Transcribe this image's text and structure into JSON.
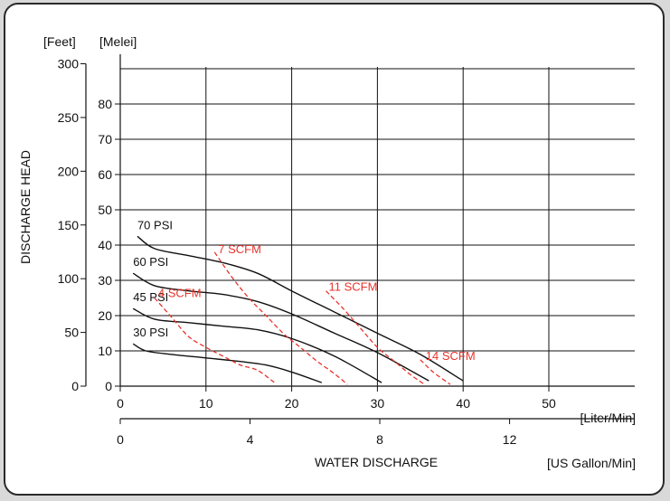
{
  "chart_data": {
    "type": "line",
    "units": {
      "feet_label": "[Feet]",
      "meter_label": "[Melei]",
      "liter_label": "[Liter/Min]",
      "gallon_label": "[US Gallon/Min]"
    },
    "ylabel": "DISCHARGE HEAD",
    "xlabel": "WATER DISCHARGE",
    "xlim": [
      0,
      60
    ],
    "ylim": [
      0,
      90
    ],
    "y_meter_ticks": [
      "0",
      "10",
      "20",
      "30",
      "40",
      "50",
      "60",
      "70",
      "80"
    ],
    "y_feet_ticks": [
      {
        "label": "0",
        "feet": 0
      },
      {
        "label": "50",
        "feet": 50
      },
      {
        "label": "100",
        "feet": 100
      },
      {
        "label": "150",
        "feet": 150
      },
      {
        "label": "200",
        "feet": 200
      },
      {
        "label": "250",
        "feet": 250
      },
      {
        "label": "300",
        "feet": 300
      }
    ],
    "x_liter_ticks": [
      "0",
      "10",
      "20",
      "30",
      "40",
      "50"
    ],
    "x_gallon_ticks": [
      {
        "label": "0",
        "gpm": 0
      },
      {
        "label": "4",
        "gpm": 4
      },
      {
        "label": "8",
        "gpm": 8
      },
      {
        "label": "12",
        "gpm": 12
      }
    ],
    "grid": true,
    "series": [
      {
        "name": "70 PSI",
        "color": "#111111",
        "dashed": false,
        "points": [
          [
            2,
            42.5
          ],
          [
            4,
            39
          ],
          [
            8,
            37
          ],
          [
            12,
            35
          ],
          [
            16,
            32
          ],
          [
            20,
            27
          ],
          [
            25,
            21
          ],
          [
            30,
            15
          ],
          [
            35,
            9
          ],
          [
            40,
            1.5
          ]
        ]
      },
      {
        "name": "60 PSI",
        "color": "#111111",
        "dashed": false,
        "points": [
          [
            1.5,
            32
          ],
          [
            4,
            28.5
          ],
          [
            8,
            27
          ],
          [
            12,
            26
          ],
          [
            16,
            24
          ],
          [
            20,
            20.5
          ],
          [
            25,
            15
          ],
          [
            30,
            9.5
          ],
          [
            36,
            1.5
          ]
        ]
      },
      {
        "name": "45 PSI",
        "color": "#111111",
        "dashed": false,
        "points": [
          [
            1.5,
            22
          ],
          [
            4,
            19
          ],
          [
            8,
            18
          ],
          [
            12,
            17
          ],
          [
            16,
            16
          ],
          [
            20,
            13.5
          ],
          [
            25,
            8.5
          ],
          [
            30.5,
            1
          ]
        ]
      },
      {
        "name": "30 PSI",
        "color": "#111111",
        "dashed": false,
        "points": [
          [
            1.5,
            12
          ],
          [
            3,
            10
          ],
          [
            6,
            9
          ],
          [
            10,
            8
          ],
          [
            14,
            7
          ],
          [
            17,
            6
          ],
          [
            20,
            4
          ],
          [
            23.5,
            1
          ]
        ]
      },
      {
        "name": "4 SCFM",
        "color": "#e8332c",
        "dashed": true,
        "points": [
          [
            4,
            25
          ],
          [
            6,
            19.5
          ],
          [
            8,
            14
          ],
          [
            10,
            11
          ],
          [
            12,
            8.5
          ],
          [
            14,
            6
          ],
          [
            16,
            4.5
          ],
          [
            18,
            1
          ]
        ]
      },
      {
        "name": "7 SCFM",
        "color": "#e8332c",
        "dashed": true,
        "points": [
          [
            11,
            38
          ],
          [
            13,
            31
          ],
          [
            15,
            25
          ],
          [
            17,
            20
          ],
          [
            19,
            15
          ],
          [
            21,
            11
          ],
          [
            23,
            7
          ],
          [
            25,
            3.5
          ],
          [
            26.5,
            0.5
          ]
        ]
      },
      {
        "name": "11 SCFM",
        "color": "#e8332c",
        "dashed": true,
        "points": [
          [
            24,
            27
          ],
          [
            26,
            22
          ],
          [
            28,
            16.5
          ],
          [
            30,
            11
          ],
          [
            32,
            7
          ],
          [
            34,
            3
          ],
          [
            35.5,
            0.5
          ]
        ]
      },
      {
        "name": "14 SCFM",
        "color": "#e8332c",
        "dashed": true,
        "points": [
          [
            35,
            7.5
          ],
          [
            36.5,
            4
          ],
          [
            38.5,
            0.5
          ]
        ]
      }
    ]
  }
}
